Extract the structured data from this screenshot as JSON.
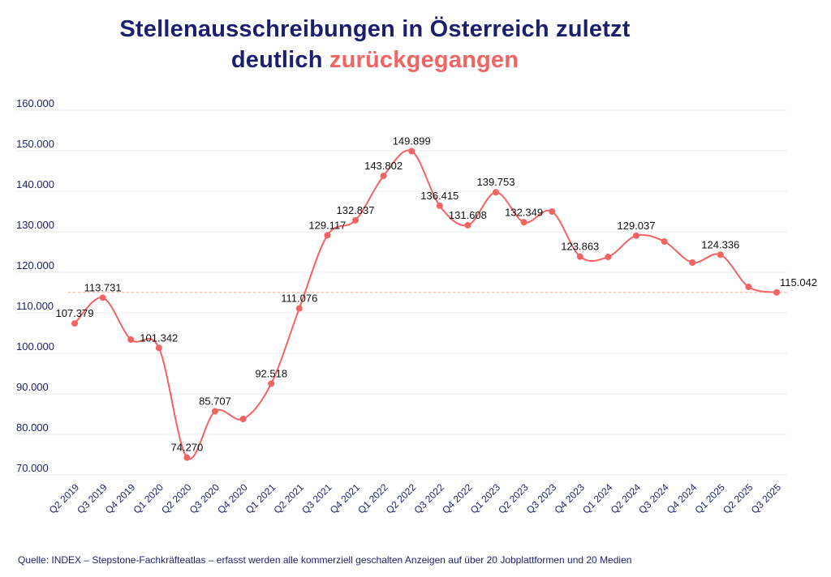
{
  "chart_data": {
    "type": "line",
    "title_line1": "Stellenausschreibungen in Österreich zuletzt",
    "title_line2_prefix": "deutlich",
    "title_line2_accent": "zurückgegangen",
    "source": "Quelle: INDEX – Stepstone-Fachkräfteatlas – erfasst werden alle kommerziell geschalten Anzeigen auf über 20 Jobplattformen und 20 Medien",
    "categories": [
      "Q2 2019",
      "Q3 2019",
      "Q4 2019",
      "Q1 2020",
      "Q2 2020",
      "Q3 2020",
      "Q4 2020",
      "Q1 2021",
      "Q2 2021",
      "Q3 2021",
      "Q4 2021",
      "Q1 2022",
      "Q2 2022",
      "Q3 2022",
      "Q4 2022",
      "Q1 2023",
      "Q2 2023",
      "Q3 2023",
      "Q4 2023",
      "Q1 2024",
      "Q2 2024",
      "Q3 2024",
      "Q4 2024",
      "Q1 2025",
      "Q2 2025",
      "Q3 2025"
    ],
    "values": [
      107379,
      113731,
      103400,
      101342,
      74270,
      85707,
      83800,
      92518,
      111076,
      129117,
      132837,
      143802,
      149899,
      136415,
      131608,
      139753,
      132349,
      135000,
      123863,
      123800,
      129037,
      127600,
      122400,
      124336,
      116400,
      115042
    ],
    "data_labels": [
      "107.379",
      "113.731",
      null,
      "101.342",
      "74.270",
      "85.707",
      null,
      "92.518",
      "111.076",
      "129.117",
      "132.837",
      "143.802",
      "149.899",
      "136.415",
      "131.608",
      "139.753",
      "132.349",
      null,
      "123.863",
      null,
      "129.037",
      null,
      null,
      "124.336",
      null,
      "115.042"
    ],
    "reference_line": 115042,
    "yticks": [
      70000,
      80000,
      90000,
      100000,
      110000,
      120000,
      130000,
      140000,
      150000,
      160000
    ],
    "ytick_labels": [
      "70.000",
      "80.000",
      "90.000",
      "100.000",
      "110.000",
      "120.000",
      "130.000",
      "140.000",
      "150.000",
      "160.000"
    ],
    "ylim": [
      70000,
      160000
    ],
    "grid": true,
    "colors": {
      "line": "#f26463",
      "navy": "#1b1f6e",
      "grid": "#ececec"
    }
  }
}
